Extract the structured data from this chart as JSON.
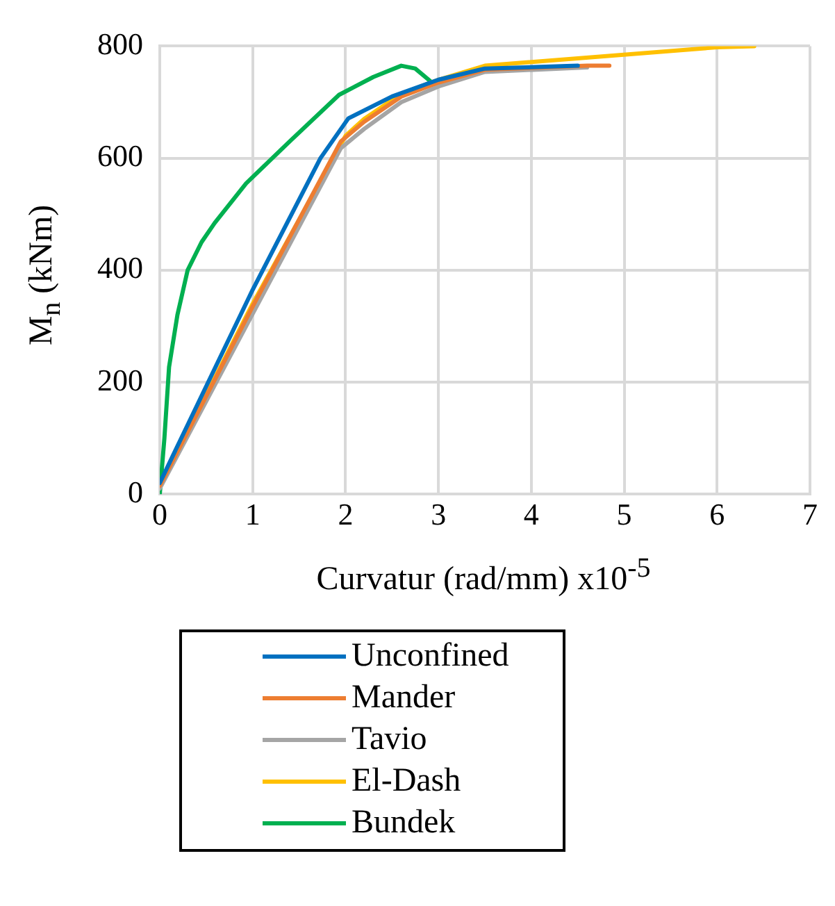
{
  "chart_data": {
    "type": "line",
    "xlabel": "Curvatur  (rad/mm) x10$^{-5}$",
    "ylabel": "M$_{n}$ (kNm)",
    "xlim": [
      0,
      7
    ],
    "xticks": [
      0,
      1,
      2,
      3,
      4,
      5,
      6,
      7
    ],
    "ylim": [
      0,
      800
    ],
    "yticks": [
      0,
      200,
      400,
      600,
      800
    ],
    "grid": true,
    "legend": "bottom",
    "marker": "none",
    "line_style": "solid",
    "series": [
      {
        "name": "Unconfined",
        "color": "#0070c0",
        "x": [
          0,
          1,
          1.73,
          2.03,
          2.5,
          3,
          3.5,
          4.5
        ],
        "values": [
          20,
          365,
          600,
          671,
          710,
          740,
          760,
          765
        ]
      },
      {
        "name": "Mander",
        "color": "#ed7d31",
        "x": [
          0,
          1,
          1.95,
          2.2,
          2.6,
          3,
          3.5,
          4.6,
          4.84
        ],
        "values": [
          15,
          335,
          630,
          665,
          710,
          735,
          758,
          765,
          765
        ]
      },
      {
        "name": "Tavio",
        "color": "#a5a5a5",
        "x": [
          0,
          1,
          1.95,
          2.2,
          2.6,
          3,
          3.5,
          4.6
        ],
        "values": [
          10,
          322,
          618,
          652,
          700,
          728,
          754,
          762
        ]
      },
      {
        "name": "El-Dash",
        "color": "#ffc000",
        "x": [
          0,
          1,
          2,
          2.2,
          2.6,
          3,
          3.5,
          6,
          6.4
        ],
        "values": [
          15,
          340,
          640,
          670,
          715,
          740,
          765,
          798,
          800
        ]
      },
      {
        "name": "Bundek",
        "color": "#00b050",
        "x": [
          0,
          0.05,
          0.1,
          0.19,
          0.3,
          0.45,
          0.59,
          0.93,
          1.4,
          1.93,
          2.3,
          2.6,
          2.75,
          2.93
        ],
        "values": [
          0,
          100,
          227,
          320,
          400,
          450,
          484,
          555,
          630,
          713,
          745,
          765,
          760,
          735
        ]
      }
    ]
  }
}
